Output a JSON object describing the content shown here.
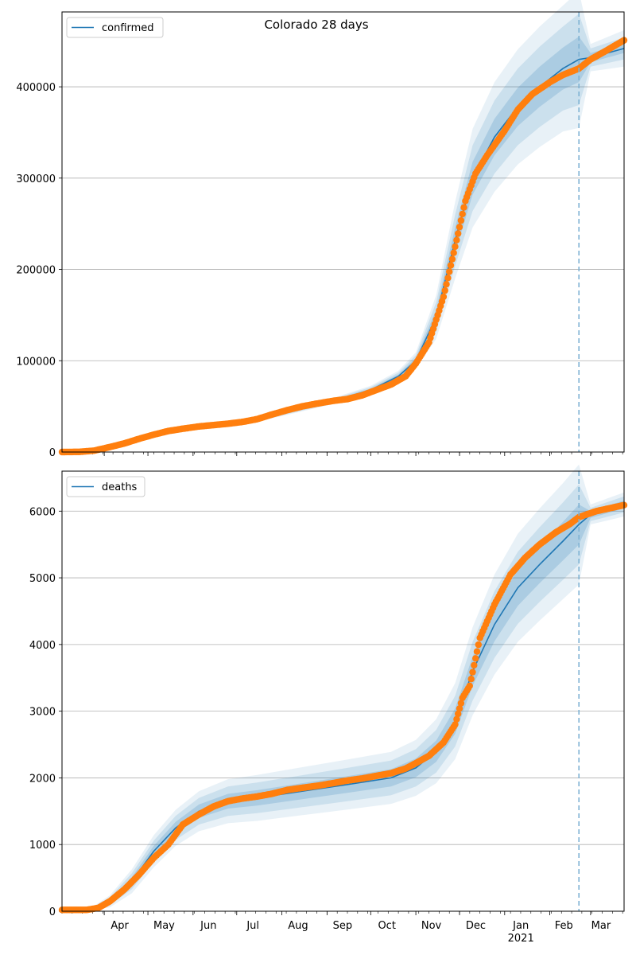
{
  "title": "Colorado 28 days",
  "x_labels": {
    "months": [
      "Apr",
      "May",
      "Jun",
      "Jul",
      "Aug",
      "Sep",
      "Oct",
      "Nov",
      "Dec",
      "Jan",
      "Feb",
      "Mar"
    ],
    "year": "2021"
  },
  "colors": {
    "model": "#1f77b4",
    "observed": "#ff7f0e",
    "band": "#1f77b4",
    "forecast_line": "#7fb2d3",
    "grid": "#b0b0b0"
  },
  "chart_data": [
    {
      "type": "line",
      "name": "confirmed",
      "legend": "confirmed",
      "legend_position": "top-left",
      "grid_y": true,
      "xlim": [
        "2020-03-03",
        "2021-03-24"
      ],
      "ylim": [
        0,
        482000
      ],
      "yticks": [
        0,
        100000,
        200000,
        300000,
        400000
      ],
      "ytick_labels": [
        "0",
        "100000",
        "200000",
        "300000",
        "400000"
      ],
      "forecast_start": "2021-02-21",
      "observed_x": [
        "2020-03-03",
        "2020-03-15",
        "2020-03-25",
        "2020-04-05",
        "2020-04-15",
        "2020-04-25",
        "2020-05-05",
        "2020-05-15",
        "2020-05-25",
        "2020-06-05",
        "2020-06-15",
        "2020-06-25",
        "2020-07-05",
        "2020-07-15",
        "2020-07-25",
        "2020-08-05",
        "2020-08-15",
        "2020-08-25",
        "2020-09-05",
        "2020-09-15",
        "2020-09-25",
        "2020-10-05",
        "2020-10-15",
        "2020-10-25",
        "2020-11-01",
        "2020-11-10",
        "2020-11-20",
        "2020-11-28",
        "2020-12-05",
        "2020-12-12",
        "2020-12-20",
        "2021-01-01",
        "2021-01-10",
        "2021-01-20",
        "2021-02-01",
        "2021-02-10",
        "2021-02-21",
        "2021-03-01",
        "2021-03-10",
        "2021-03-24"
      ],
      "observed_y": [
        0,
        200,
        1500,
        5500,
        9500,
        14500,
        19000,
        23000,
        25500,
        28000,
        29500,
        31000,
        33000,
        36000,
        41000,
        46000,
        50000,
        53000,
        56000,
        58000,
        62000,
        68000,
        74000,
        83000,
        97000,
        120000,
        170000,
        225000,
        275000,
        305000,
        325000,
        352000,
        375000,
        392000,
        405000,
        413000,
        420000,
        430000,
        438000,
        451000
      ],
      "model_x": [
        "2020-03-03",
        "2020-04-01",
        "2020-05-01",
        "2020-06-01",
        "2020-07-01",
        "2020-08-01",
        "2020-09-01",
        "2020-10-01",
        "2020-10-20",
        "2020-11-01",
        "2020-11-15",
        "2020-11-28",
        "2020-12-10",
        "2020-12-25",
        "2021-01-10",
        "2021-01-25",
        "2021-02-10",
        "2021-02-21",
        "2021-03-01",
        "2021-03-24"
      ],
      "model_y": [
        0,
        3000,
        17000,
        26000,
        31000,
        42000,
        54000,
        68000,
        83000,
        100000,
        148000,
        232000,
        300000,
        345000,
        378000,
        400000,
        420000,
        430000,
        432000,
        442000
      ],
      "band_half_width": [
        [
          0,
          200,
          500,
          700,
          800,
          900,
          1000,
          1500,
          2000,
          3000,
          8000,
          14000,
          18000,
          20000,
          21000,
          22000,
          23000,
          25000,
          5000,
          5000
        ],
        [
          0,
          500,
          1000,
          1500,
          1700,
          1800,
          2000,
          3000,
          4000,
          6000,
          16000,
          28000,
          36000,
          40000,
          42000,
          44000,
          46000,
          50000,
          10000,
          12000
        ],
        [
          0,
          800,
          1500,
          2200,
          2500,
          2700,
          3000,
          4500,
          6000,
          9000,
          24000,
          42000,
          54000,
          60000,
          63000,
          66000,
          69000,
          75000,
          15000,
          20000
        ]
      ]
    },
    {
      "type": "line",
      "name": "deaths",
      "legend": "deaths",
      "legend_position": "top-left",
      "grid_y": true,
      "xlim": [
        "2020-03-03",
        "2021-03-24"
      ],
      "ylim": [
        0,
        6600
      ],
      "yticks": [
        0,
        1000,
        2000,
        3000,
        4000,
        5000,
        6000
      ],
      "ytick_labels": [
        "0",
        "1000",
        "2000",
        "3000",
        "4000",
        "5000",
        "6000"
      ],
      "forecast_start": "2021-02-21",
      "observed_x": [
        "2020-03-03",
        "2020-03-20",
        "2020-03-28",
        "2020-04-05",
        "2020-04-15",
        "2020-04-25",
        "2020-05-05",
        "2020-05-15",
        "2020-05-25",
        "2020-06-05",
        "2020-06-15",
        "2020-06-25",
        "2020-07-05",
        "2020-07-15",
        "2020-07-25",
        "2020-08-05",
        "2020-08-15",
        "2020-08-25",
        "2020-09-05",
        "2020-09-15",
        "2020-09-25",
        "2020-10-05",
        "2020-10-15",
        "2020-10-25",
        "2020-11-01",
        "2020-11-10",
        "2020-11-20",
        "2020-11-28",
        "2020-12-03",
        "2020-12-08",
        "2020-12-15",
        "2020-12-25",
        "2021-01-05",
        "2021-01-15",
        "2021-01-25",
        "2021-02-05",
        "2021-02-15",
        "2021-02-21",
        "2021-03-05",
        "2021-03-24"
      ],
      "observed_y": [
        20,
        20,
        50,
        150,
        330,
        550,
        800,
        1000,
        1300,
        1450,
        1570,
        1650,
        1690,
        1720,
        1760,
        1820,
        1850,
        1880,
        1920,
        1960,
        1990,
        2030,
        2070,
        2140,
        2220,
        2330,
        2530,
        2800,
        3200,
        3380,
        4100,
        4600,
        5050,
        5300,
        5500,
        5680,
        5810,
        5910,
        6000,
        6090
      ],
      "model_x": [
        "2020-03-03",
        "2020-03-25",
        "2020-04-05",
        "2020-04-20",
        "2020-05-05",
        "2020-05-20",
        "2020-06-05",
        "2020-06-25",
        "2020-07-15",
        "2020-08-15",
        "2020-09-15",
        "2020-10-15",
        "2020-11-01",
        "2020-11-15",
        "2020-11-28",
        "2020-12-10",
        "2020-12-25",
        "2021-01-10",
        "2021-01-25",
        "2021-02-10",
        "2021-02-21",
        "2021-03-01",
        "2021-03-24"
      ],
      "model_y": [
        0,
        50,
        150,
        450,
        900,
        1250,
        1500,
        1650,
        1700,
        1800,
        1900,
        2000,
        2150,
        2400,
        2850,
        3600,
        4300,
        4850,
        5200,
        5550,
        5800,
        5950,
        6100
      ],
      "band_half_width": [
        [
          0,
          10,
          30,
          60,
          80,
          90,
          100,
          110,
          115,
          120,
          125,
          130,
          140,
          160,
          190,
          220,
          250,
          270,
          280,
          290,
          300,
          50,
          60
        ],
        [
          0,
          20,
          60,
          120,
          160,
          180,
          200,
          220,
          230,
          240,
          250,
          260,
          280,
          320,
          380,
          440,
          500,
          540,
          560,
          580,
          600,
          100,
          120
        ],
        [
          0,
          30,
          90,
          180,
          240,
          270,
          300,
          330,
          345,
          360,
          375,
          390,
          420,
          480,
          570,
          660,
          750,
          810,
          840,
          870,
          900,
          150,
          180
        ]
      ]
    }
  ]
}
